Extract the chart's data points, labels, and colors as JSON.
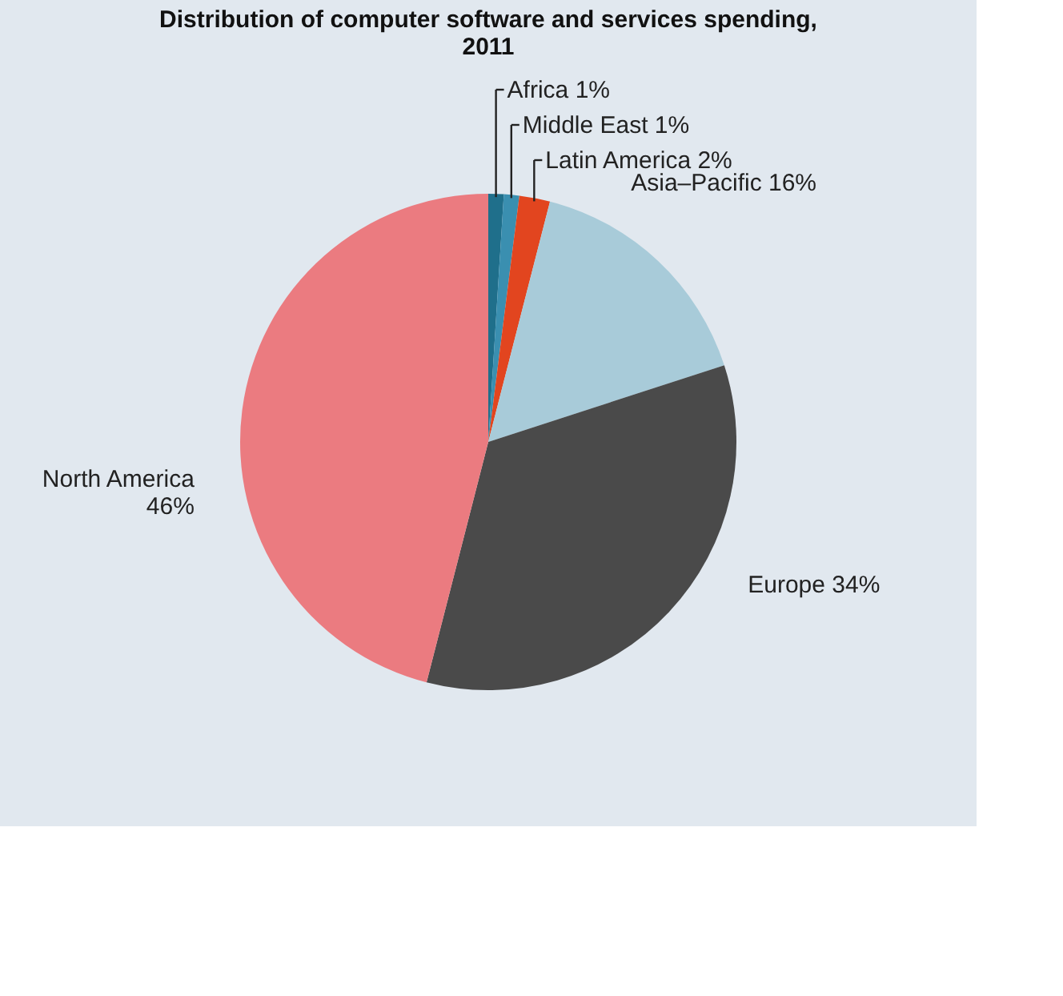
{
  "chart_data": {
    "type": "pie",
    "title": [
      "Distribution of computer software and services spending,",
      "2011"
    ],
    "categories": [
      "Africa",
      "Middle East",
      "Latin America",
      "Asia–Pacific",
      "Europe",
      "North America"
    ],
    "values": [
      1,
      1,
      2,
      16,
      34,
      46
    ],
    "value_labels": [
      "1%",
      "1%",
      "2%",
      "16%",
      "34%",
      "46%"
    ],
    "colors": [
      "#1f6f8b",
      "#3a8fb0",
      "#e2451f",
      "#a8cbd9",
      "#4a4a4a",
      "#eb7b80"
    ],
    "legend": false
  }
}
